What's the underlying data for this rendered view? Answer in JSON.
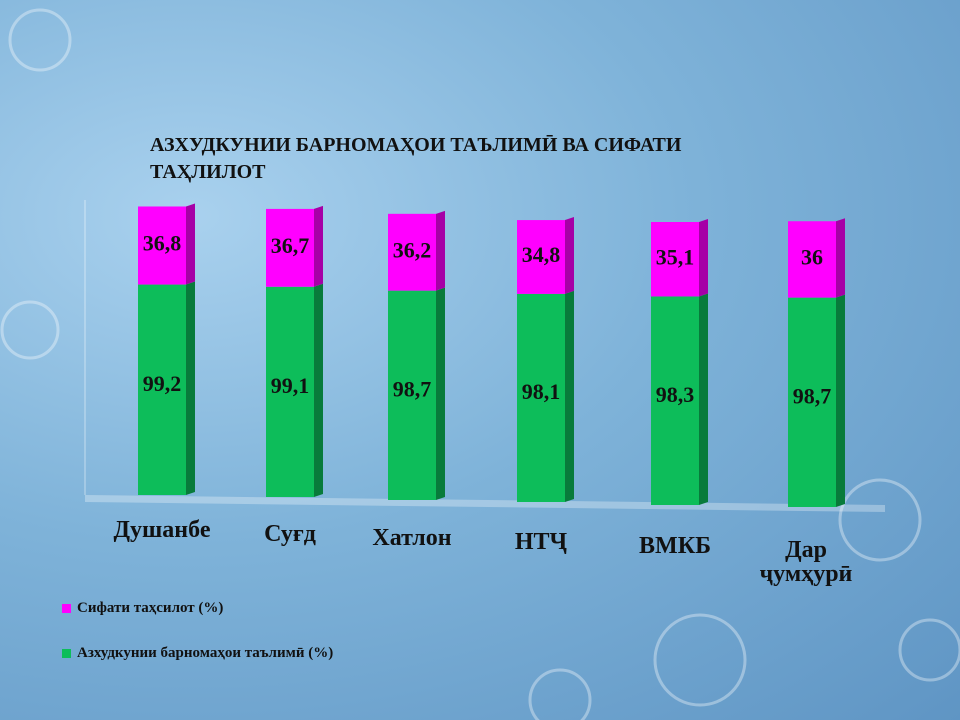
{
  "chart_data": {
    "type": "stacked-bar",
    "title": "АЗХУДКУНИИ БАРНОМАҲОИ ТАЪЛИМӢ ВА СИФАТИ ТАҲЛИЛОТ",
    "categories": [
      "Душанбе",
      "Суғд",
      "Хатлон",
      "НТҶ",
      "ВМКБ",
      "Дар ҷумҳурӣ"
    ],
    "series": [
      {
        "name": "Азхудкунии барномаҳои таълимӣ (%)",
        "color": "#0dbd5a",
        "values": [
          99.2,
          99.1,
          98.7,
          98.1,
          98.3,
          98.7
        ],
        "value_labels": [
          "99,2",
          "99,1",
          "98,7",
          "98,1",
          "98,3",
          "98,7"
        ]
      },
      {
        "name": "Сифати таҳсилот (%)",
        "color": "#ff00ff",
        "values": [
          36.8,
          36.7,
          36.2,
          34.8,
          35.1,
          36
        ],
        "value_labels": [
          "36,8",
          "36,7",
          "36,2",
          "34,8",
          "35,1",
          "36"
        ]
      }
    ],
    "ylim": [
      0,
      140
    ],
    "legend": "bottom-left"
  }
}
